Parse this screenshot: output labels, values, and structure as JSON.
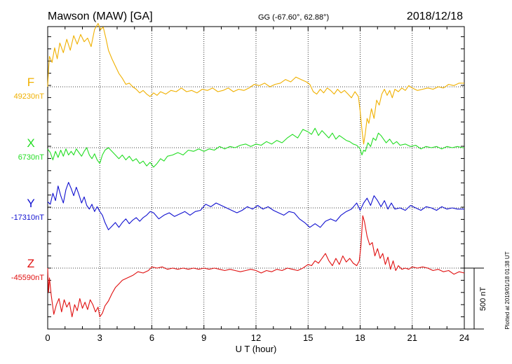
{
  "header": {
    "station": "Mawson (MAW)  [GA]",
    "coords": "GG (-67.60°,  62.88°)",
    "date": "2018/12/18"
  },
  "footer": {
    "plotted": "Plotted at 2019/01/18 01:38 UT"
  },
  "chart_data": {
    "type": "line",
    "xlabel": "U T (hour)",
    "xlim": [
      0,
      24
    ],
    "x_ticks": [
      "0",
      "3",
      "6",
      "9",
      "12",
      "15",
      "18",
      "21",
      "24"
    ],
    "scale_bar": {
      "label": "500 nT",
      "value_nT": 500
    },
    "series": [
      {
        "name": "F",
        "baseline_label": "49230nT",
        "baseline_nT": 49230,
        "color": "#f0b000",
        "x": [
          0.0,
          0.05,
          0.1,
          0.25,
          0.4,
          0.55,
          0.7,
          0.9,
          1.1,
          1.3,
          1.5,
          1.7,
          1.9,
          2.1,
          2.3,
          2.5,
          2.7,
          2.9,
          3.05,
          3.2,
          3.35,
          3.5,
          3.7,
          3.9,
          4.1,
          4.3,
          4.5,
          4.7,
          4.9,
          5.1,
          5.3,
          5.5,
          5.7,
          5.9,
          6.1,
          6.3,
          6.5,
          6.8,
          7.1,
          7.4,
          7.7,
          8.0,
          8.3,
          8.6,
          8.9,
          9.2,
          9.5,
          9.8,
          10.1,
          10.4,
          10.7,
          11.0,
          11.3,
          11.6,
          11.9,
          12.2,
          12.5,
          12.8,
          13.1,
          13.4,
          13.7,
          14.0,
          14.3,
          14.6,
          14.9,
          15.1,
          15.3,
          15.5,
          15.7,
          15.9,
          16.1,
          16.3,
          16.5,
          16.7,
          16.9,
          17.1,
          17.3,
          17.5,
          17.7,
          17.9,
          18.0,
          18.1,
          18.2,
          18.3,
          18.4,
          18.5,
          18.65,
          18.8,
          18.95,
          19.1,
          19.25,
          19.4,
          19.55,
          19.7,
          19.85,
          20.0,
          20.2,
          20.4,
          20.6,
          20.8,
          21.0,
          21.3,
          21.6,
          21.9,
          22.2,
          22.5,
          22.8,
          23.1,
          23.4,
          23.7,
          24.0
        ],
        "y": [
          0,
          140,
          250,
          200,
          320,
          230,
          360,
          280,
          390,
          300,
          420,
          350,
          430,
          370,
          400,
          330,
          470,
          520,
          470,
          490,
          400,
          300,
          230,
          170,
          110,
          70,
          20,
          30,
          0,
          -20,
          -50,
          -30,
          -60,
          -80,
          -50,
          -70,
          -40,
          -60,
          -30,
          -40,
          -10,
          -40,
          -30,
          -50,
          -20,
          -30,
          -10,
          -40,
          -30,
          -10,
          -40,
          -20,
          -30,
          -10,
          20,
          10,
          30,
          0,
          20,
          30,
          60,
          40,
          80,
          60,
          40,
          20,
          -40,
          -60,
          -20,
          -50,
          -10,
          -30,
          -60,
          -20,
          -50,
          -30,
          -60,
          -90,
          -40,
          -80,
          -200,
          -350,
          -470,
          -380,
          -260,
          -300,
          -180,
          -260,
          -110,
          -150,
          -60,
          -20,
          -70,
          -30,
          -90,
          -20,
          -40,
          -10,
          -30,
          10,
          -10,
          -30,
          -20,
          -10,
          -20,
          0,
          -10,
          20,
          10,
          30,
          30
        ]
      },
      {
        "name": "X",
        "baseline_label": "6730nT",
        "baseline_nT": 6730,
        "color": "#22dd22",
        "x": [
          0.0,
          0.15,
          0.3,
          0.45,
          0.6,
          0.75,
          0.9,
          1.05,
          1.2,
          1.35,
          1.5,
          1.65,
          1.8,
          1.95,
          2.1,
          2.25,
          2.4,
          2.55,
          2.7,
          2.85,
          3.0,
          3.15,
          3.3,
          3.5,
          3.7,
          3.9,
          4.1,
          4.3,
          4.5,
          4.7,
          4.9,
          5.1,
          5.3,
          5.5,
          5.7,
          5.9,
          6.1,
          6.3,
          6.5,
          6.7,
          6.9,
          7.2,
          7.5,
          7.8,
          8.1,
          8.4,
          8.7,
          9.0,
          9.3,
          9.6,
          9.9,
          10.2,
          10.5,
          10.8,
          11.1,
          11.4,
          11.7,
          12.0,
          12.3,
          12.6,
          12.9,
          13.2,
          13.5,
          13.8,
          14.1,
          14.4,
          14.7,
          15.0,
          15.2,
          15.4,
          15.6,
          15.8,
          16.0,
          16.2,
          16.4,
          16.6,
          16.8,
          17.0,
          17.2,
          17.4,
          17.6,
          17.8,
          18.0,
          18.1,
          18.2,
          18.3,
          18.45,
          18.6,
          18.75,
          18.9,
          19.05,
          19.2,
          19.35,
          19.5,
          19.7,
          19.9,
          20.1,
          20.3,
          20.6,
          20.9,
          21.2,
          21.5,
          21.8,
          22.1,
          22.4,
          22.7,
          23.0,
          23.3,
          23.6,
          23.9,
          24.0
        ],
        "y": [
          -10,
          -40,
          -100,
          -30,
          -80,
          -20,
          -70,
          -10,
          -60,
          -30,
          -60,
          -10,
          -40,
          -70,
          -30,
          0,
          -60,
          -90,
          -50,
          -100,
          -130,
          -60,
          -20,
          0,
          -30,
          -60,
          -90,
          -60,
          -100,
          -70,
          -110,
          -90,
          -130,
          -110,
          -150,
          -120,
          -160,
          -130,
          -90,
          -110,
          -70,
          -60,
          -40,
          -60,
          -20,
          -30,
          -10,
          -30,
          -10,
          -20,
          10,
          -10,
          10,
          0,
          20,
          30,
          10,
          30,
          20,
          50,
          30,
          60,
          40,
          80,
          110,
          80,
          150,
          130,
          110,
          160,
          100,
          140,
          110,
          80,
          120,
          70,
          100,
          80,
          60,
          50,
          30,
          20,
          -10,
          -60,
          -20,
          -30,
          40,
          10,
          80,
          60,
          120,
          100,
          70,
          40,
          70,
          30,
          50,
          20,
          30,
          10,
          20,
          -10,
          10,
          0,
          10,
          -10,
          10,
          0,
          10,
          0,
          0
        ]
      },
      {
        "name": "Y",
        "baseline_label": "-17310nT",
        "baseline_nT": -17310,
        "color": "#1010d0",
        "x": [
          0.0,
          0.15,
          0.3,
          0.45,
          0.6,
          0.75,
          0.9,
          1.05,
          1.2,
          1.35,
          1.5,
          1.65,
          1.8,
          1.95,
          2.1,
          2.25,
          2.4,
          2.55,
          2.7,
          2.85,
          3.0,
          3.15,
          3.3,
          3.5,
          3.7,
          3.9,
          4.1,
          4.3,
          4.5,
          4.7,
          4.9,
          5.1,
          5.3,
          5.5,
          5.7,
          5.9,
          6.1,
          6.4,
          6.7,
          7.0,
          7.3,
          7.6,
          7.9,
          8.2,
          8.5,
          8.8,
          9.1,
          9.4,
          9.7,
          10.0,
          10.3,
          10.6,
          10.9,
          11.2,
          11.5,
          11.8,
          12.1,
          12.4,
          12.7,
          13.0,
          13.3,
          13.6,
          13.9,
          14.2,
          14.5,
          14.8,
          15.1,
          15.4,
          15.7,
          16.0,
          16.3,
          16.6,
          16.9,
          17.2,
          17.5,
          17.8,
          18.0,
          18.2,
          18.4,
          18.6,
          18.8,
          19.0,
          19.2,
          19.4,
          19.6,
          19.8,
          20.0,
          20.3,
          20.6,
          20.9,
          21.2,
          21.5,
          21.8,
          22.1,
          22.4,
          22.7,
          23.0,
          23.3,
          23.6,
          24.0
        ],
        "y": [
          50,
          30,
          120,
          60,
          180,
          100,
          40,
          150,
          210,
          160,
          100,
          170,
          110,
          40,
          90,
          20,
          -10,
          30,
          -30,
          10,
          -30,
          -60,
          -120,
          -180,
          -150,
          -120,
          -160,
          -120,
          -90,
          -130,
          -100,
          -80,
          -110,
          -80,
          -60,
          -30,
          -40,
          -90,
          -60,
          -40,
          -70,
          -50,
          -30,
          -60,
          -30,
          -20,
          30,
          10,
          40,
          20,
          0,
          -20,
          -40,
          -20,
          10,
          -10,
          20,
          -10,
          10,
          -20,
          -40,
          -60,
          -30,
          -40,
          -90,
          -120,
          -160,
          -130,
          -160,
          -110,
          -90,
          -110,
          -60,
          -30,
          -10,
          40,
          -20,
          40,
          80,
          20,
          100,
          60,
          10,
          60,
          -10,
          40,
          -10,
          0,
          -20,
          20,
          0,
          -20,
          10,
          0,
          -20,
          10,
          -10,
          0,
          -10,
          -10
        ]
      },
      {
        "name": "Z",
        "baseline_label": "-45590nT",
        "baseline_nT": -45590,
        "color": "#e01010",
        "x": [
          0.0,
          0.05,
          0.1,
          0.2,
          0.35,
          0.5,
          0.65,
          0.8,
          0.95,
          1.1,
          1.25,
          1.4,
          1.55,
          1.7,
          1.85,
          2.0,
          2.15,
          2.3,
          2.45,
          2.6,
          2.75,
          2.9,
          3.0,
          3.15,
          3.3,
          3.5,
          3.7,
          3.9,
          4.1,
          4.3,
          4.6,
          4.9,
          5.2,
          5.5,
          5.8,
          6.0,
          6.3,
          6.6,
          6.9,
          7.2,
          7.5,
          7.8,
          8.1,
          8.4,
          8.7,
          9.0,
          9.3,
          9.6,
          9.9,
          10.2,
          10.5,
          10.8,
          11.1,
          11.4,
          11.7,
          12.0,
          12.3,
          12.6,
          12.9,
          13.2,
          13.5,
          13.8,
          14.1,
          14.4,
          14.7,
          15.0,
          15.2,
          15.4,
          15.6,
          15.8,
          16.0,
          16.2,
          16.4,
          16.6,
          16.8,
          17.0,
          17.2,
          17.4,
          17.6,
          17.8,
          17.95,
          18.05,
          18.15,
          18.25,
          18.4,
          18.55,
          18.7,
          18.85,
          19.0,
          19.15,
          19.3,
          19.45,
          19.6,
          19.75,
          19.9,
          20.05,
          20.2,
          20.4,
          20.6,
          20.8,
          21.0,
          21.3,
          21.6,
          21.9,
          22.2,
          22.5,
          22.8,
          23.1,
          23.4,
          23.7,
          24.0
        ],
        "y": [
          0,
          -200,
          -80,
          -220,
          -380,
          -300,
          -250,
          -360,
          -260,
          -320,
          -280,
          -400,
          -300,
          -350,
          -250,
          -330,
          -280,
          -340,
          -260,
          -300,
          -360,
          -320,
          -400,
          -370,
          -310,
          -270,
          -210,
          -160,
          -130,
          -100,
          -80,
          -60,
          -30,
          -40,
          -20,
          10,
          0,
          10,
          -10,
          0,
          -10,
          0,
          -10,
          0,
          -10,
          0,
          -10,
          0,
          -10,
          -20,
          -10,
          -20,
          -30,
          -20,
          -10,
          -20,
          -40,
          -20,
          -30,
          -10,
          -20,
          0,
          -10,
          -20,
          0,
          30,
          20,
          60,
          40,
          80,
          120,
          60,
          20,
          80,
          30,
          100,
          50,
          80,
          40,
          20,
          60,
          190,
          430,
          380,
          260,
          190,
          210,
          100,
          160,
          80,
          120,
          30,
          90,
          -10,
          60,
          -20,
          20,
          -10,
          0,
          -10,
          10,
          0,
          10,
          0,
          -20,
          -10,
          -30,
          -20,
          -50,
          -30,
          -40
        ]
      }
    ]
  }
}
